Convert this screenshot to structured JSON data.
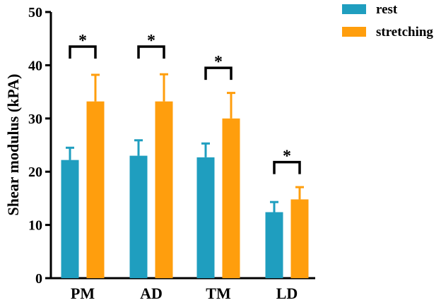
{
  "chart_data": {
    "type": "bar",
    "title": "",
    "xlabel": "",
    "ylabel": "Shear modulus (kPA)",
    "ylim": [
      0,
      50
    ],
    "yticks": [
      "0",
      "10",
      "20",
      "30",
      "40",
      "50"
    ],
    "categories": [
      "PM",
      "AD",
      "TM",
      "LD"
    ],
    "series": [
      {
        "name": "rest",
        "color": "#1f9ebf",
        "values": [
          22.2,
          23.0,
          22.7,
          12.4
        ],
        "errors": [
          2.3,
          2.9,
          2.6,
          1.9
        ]
      },
      {
        "name": "stretching",
        "color": "#ff9e0d",
        "values": [
          33.2,
          33.2,
          30.0,
          14.8
        ],
        "errors": [
          5.0,
          5.1,
          4.8,
          2.3
        ]
      }
    ],
    "significance": {
      "symbol": "*",
      "categories": [
        "PM",
        "AD",
        "TM",
        "LD"
      ],
      "bracket_values": [
        43.5,
        43.5,
        39.5,
        21.8
      ]
    },
    "legend": {
      "placement": "top-right"
    }
  }
}
